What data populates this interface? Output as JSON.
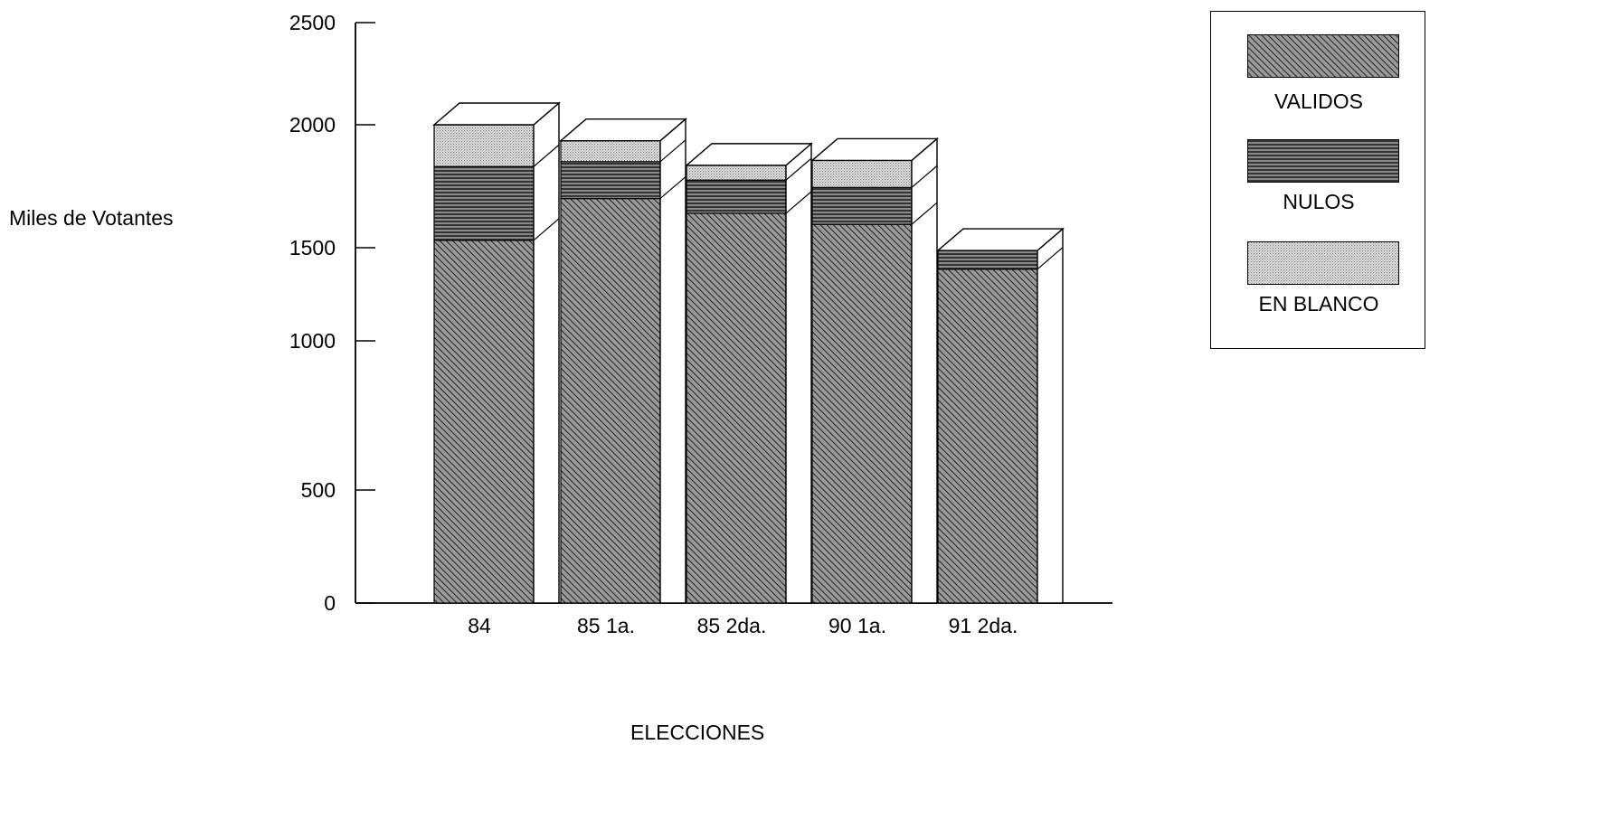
{
  "chart_data": {
    "type": "bar",
    "stacked": true,
    "three_d": true,
    "title": "",
    "xlabel": "ELECCIONES",
    "ylabel": "Miles de Votantes",
    "categories": [
      "84",
      "85 1a.",
      "85 2da.",
      "90 1a.",
      "91  2da."
    ],
    "yticks": [
      0,
      500,
      1000,
      1500,
      2000,
      2500
    ],
    "ylim": [
      0,
      2500
    ],
    "series": [
      {
        "name": "VALIDOS",
        "values": [
          1530,
          1700,
          1640,
          1595,
          1385
        ],
        "pattern": "diagonal",
        "color": "#555555"
      },
      {
        "name": "NULOS",
        "values": [
          300,
          150,
          135,
          150,
          100
        ],
        "pattern": "horizontal",
        "color": "#444444"
      },
      {
        "name": "EN BLANCO",
        "values": [
          170,
          85,
          60,
          110,
          0
        ],
        "pattern": "dots",
        "color": "#bdbdbd"
      }
    ],
    "legend_position": "top-right"
  }
}
